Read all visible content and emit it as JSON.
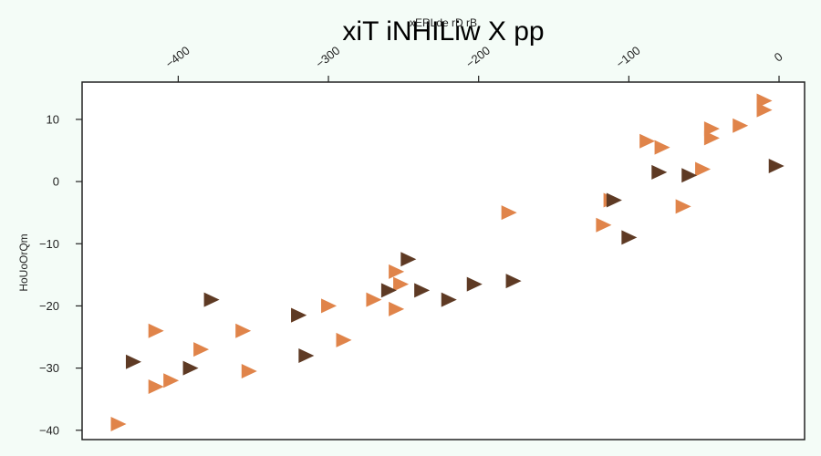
{
  "chart_data": {
    "type": "scatter",
    "title": "xiT iNHILiw X  pp",
    "xlabel": "xERLde rD rB",
    "ylabel": "HoUoOrQm",
    "xlim": [
      -464,
      17
    ],
    "ylim": [
      -41.5,
      16
    ],
    "x_ticks": [
      -400,
      -300,
      -200,
      -100,
      0
    ],
    "y_ticks": [
      10,
      0,
      -10,
      -20,
      -30,
      -40
    ],
    "x_axis_position": "top",
    "grid": false,
    "marker": "triangle-right",
    "legend": "none",
    "series": [
      {
        "color": "#e0844a",
        "points": [
          [
            -440,
            -39
          ],
          [
            -415,
            -33
          ],
          [
            -405,
            -32
          ],
          [
            -415,
            -24
          ],
          [
            -385,
            -27
          ],
          [
            -357,
            -24
          ],
          [
            -353,
            -30.5
          ],
          [
            -320,
            -21.5
          ],
          [
            -300,
            -20
          ],
          [
            -290,
            -25.5
          ],
          [
            -270,
            -19
          ],
          [
            -255,
            -14.5
          ],
          [
            -252,
            -16.5
          ],
          [
            -255,
            -20.5
          ],
          [
            -180,
            -5
          ],
          [
            -117,
            -7
          ],
          [
            -112,
            -3
          ],
          [
            -88,
            6.5
          ],
          [
            -78,
            5.5
          ],
          [
            -64,
            -4
          ],
          [
            -51,
            2
          ],
          [
            -45,
            7
          ],
          [
            -45,
            8.5
          ],
          [
            -26,
            9
          ],
          [
            -10,
            13
          ],
          [
            -10,
            11.5
          ]
        ]
      },
      {
        "color": "#5e3a24",
        "points": [
          [
            -430,
            -29
          ],
          [
            -392,
            -30
          ],
          [
            -378,
            -19
          ],
          [
            -320,
            -21.5
          ],
          [
            -315,
            -28
          ],
          [
            -260,
            -17.5
          ],
          [
            -247,
            -12.5
          ],
          [
            -238,
            -17.5
          ],
          [
            -220,
            -19
          ],
          [
            -203,
            -16.5
          ],
          [
            -177,
            -16
          ],
          [
            -110,
            -3
          ],
          [
            -100,
            -9
          ],
          [
            -80,
            1.5
          ],
          [
            -60,
            1
          ],
          [
            -2,
            2.5
          ]
        ]
      }
    ]
  }
}
